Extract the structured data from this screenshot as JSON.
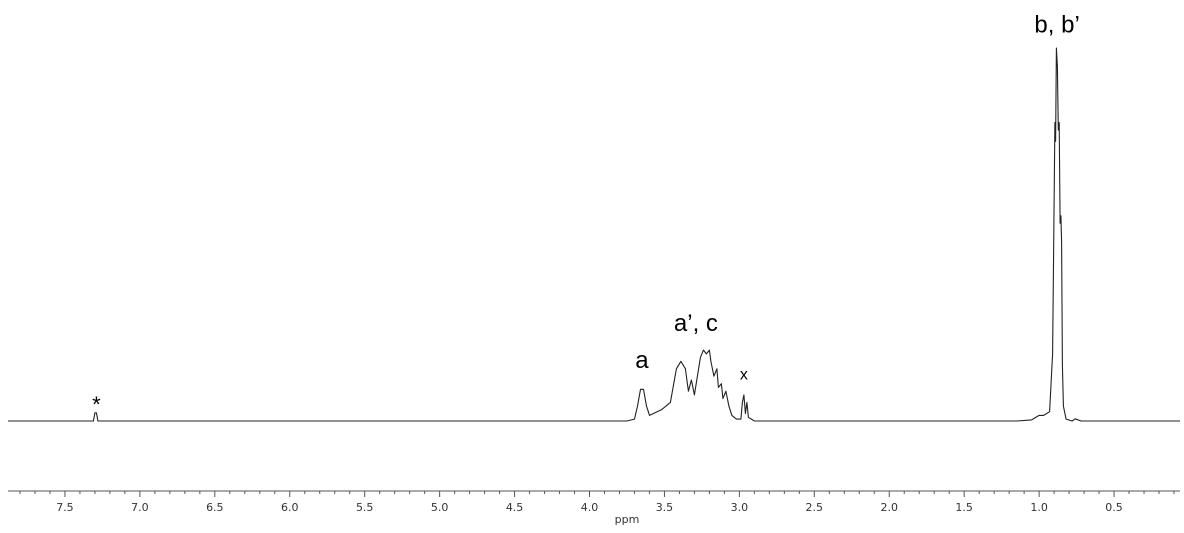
{
  "chart_data": {
    "type": "line",
    "xlabel": "ppm",
    "ylabel": "",
    "x_reversed": true,
    "xlim": [
      7.88,
      0.06
    ],
    "ylim": [
      0,
      1.0
    ],
    "grid": false,
    "x_ticks": [
      "7.5",
      "7.0",
      "6.5",
      "6.0",
      "5.5",
      "5.0",
      "4.5",
      "4.0",
      "3.5",
      "3.0",
      "2.5",
      "2.0",
      "1.5",
      "1.0",
      "0.5"
    ],
    "x_tick_values": [
      7.5,
      7.0,
      6.5,
      6.0,
      5.5,
      5.0,
      4.5,
      4.0,
      3.5,
      3.0,
      2.5,
      2.0,
      1.5,
      1.0,
      0.5
    ],
    "annotations": [
      {
        "text": "*",
        "x": 7.29,
        "y": 0.04
      },
      {
        "text": "a",
        "x": 3.65,
        "y": 0.12
      },
      {
        "text": "a’, c",
        "x": 3.29,
        "y": 0.22
      },
      {
        "text": "x",
        "x": 2.97,
        "y": 0.09
      },
      {
        "text": "b, b’",
        "x": 0.88,
        "y": 1.02
      }
    ],
    "series": [
      {
        "values": [
          [
            7.88,
            0
          ],
          [
            7.31,
            0
          ],
          [
            7.3,
            0.022
          ],
          [
            7.29,
            0.022
          ],
          [
            7.28,
            0
          ],
          [
            3.75,
            0.0
          ],
          [
            3.7,
            0.005
          ],
          [
            3.68,
            0.04
          ],
          [
            3.66,
            0.085
          ],
          [
            3.64,
            0.085
          ],
          [
            3.62,
            0.04
          ],
          [
            3.6,
            0.015
          ],
          [
            3.52,
            0.03
          ],
          [
            3.46,
            0.05
          ],
          [
            3.42,
            0.14
          ],
          [
            3.39,
            0.16
          ],
          [
            3.36,
            0.14
          ],
          [
            3.34,
            0.08
          ],
          [
            3.32,
            0.11
          ],
          [
            3.3,
            0.07
          ],
          [
            3.28,
            0.12
          ],
          [
            3.26,
            0.17
          ],
          [
            3.24,
            0.19
          ],
          [
            3.22,
            0.18
          ],
          [
            3.2,
            0.19
          ],
          [
            3.19,
            0.16
          ],
          [
            3.17,
            0.12
          ],
          [
            3.15,
            0.14
          ],
          [
            3.14,
            0.09
          ],
          [
            3.12,
            0.1
          ],
          [
            3.11,
            0.06
          ],
          [
            3.09,
            0.08
          ],
          [
            3.07,
            0.04
          ],
          [
            3.05,
            0.015
          ],
          [
            3.02,
            0.005
          ],
          [
            2.99,
            0.005
          ],
          [
            2.98,
            0.05
          ],
          [
            2.97,
            0.07
          ],
          [
            2.96,
            0.02
          ],
          [
            2.95,
            0.05
          ],
          [
            2.94,
            0.01
          ],
          [
            2.9,
            0.0
          ],
          [
            2.8,
            0.0
          ],
          [
            1.15,
            0.0
          ],
          [
            1.05,
            0.003
          ],
          [
            1.0,
            0.015
          ],
          [
            0.97,
            0.015
          ],
          [
            0.93,
            0.025
          ],
          [
            0.91,
            0.18
          ],
          [
            0.895,
            0.8
          ],
          [
            0.89,
            0.75
          ],
          [
            0.885,
            1.0
          ],
          [
            0.878,
            0.95
          ],
          [
            0.872,
            0.78
          ],
          [
            0.866,
            0.8
          ],
          [
            0.86,
            0.53
          ],
          [
            0.855,
            0.55
          ],
          [
            0.85,
            0.48
          ],
          [
            0.845,
            0.15
          ],
          [
            0.838,
            0.04
          ],
          [
            0.82,
            0.005
          ],
          [
            0.78,
            0.0
          ],
          [
            0.76,
            0.006
          ],
          [
            0.72,
            0.0
          ],
          [
            0.06,
            0.0
          ]
        ]
      }
    ]
  }
}
